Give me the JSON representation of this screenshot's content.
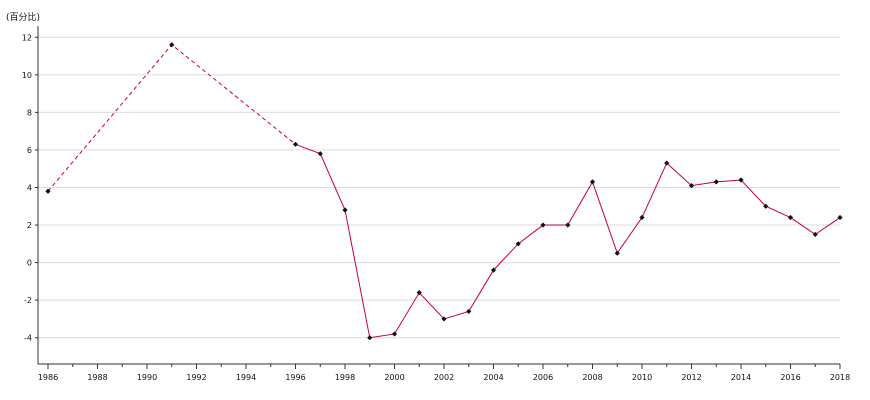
{
  "chart_data": {
    "type": "line",
    "title": "",
    "ylabel": "(百分比)",
    "xlabel": "",
    "x": [
      1986,
      1991,
      1996,
      1997,
      1998,
      1999,
      2000,
      2001,
      2002,
      2003,
      2004,
      2005,
      2006,
      2007,
      2008,
      2009,
      2010,
      2011,
      2012,
      2013,
      2014,
      2015,
      2016,
      2017,
      2018
    ],
    "series": [
      {
        "name": "",
        "values": [
          3.8,
          11.6,
          6.3,
          5.8,
          2.8,
          -4.0,
          -3.8,
          -1.6,
          -3.0,
          -2.6,
          -0.4,
          1.0,
          2.0,
          2.0,
          4.3,
          0.5,
          2.4,
          5.3,
          4.1,
          4.3,
          4.4,
          3.0,
          2.4,
          1.5,
          2.4
        ],
        "color": "#c4003a",
        "dashed_until_x": 1996
      }
    ],
    "xlim": [
      1986,
      2018
    ],
    "ylim": [
      -5.4,
      12.6
    ],
    "xticks": [
      1986,
      1988,
      1990,
      1992,
      1994,
      1996,
      1998,
      2000,
      2002,
      2004,
      2006,
      2008,
      2010,
      2012,
      2014,
      2016,
      2018
    ],
    "yticks": [
      -4,
      -2,
      0,
      2,
      4,
      6,
      8,
      10,
      12
    ],
    "grid": true,
    "legend": "none"
  }
}
